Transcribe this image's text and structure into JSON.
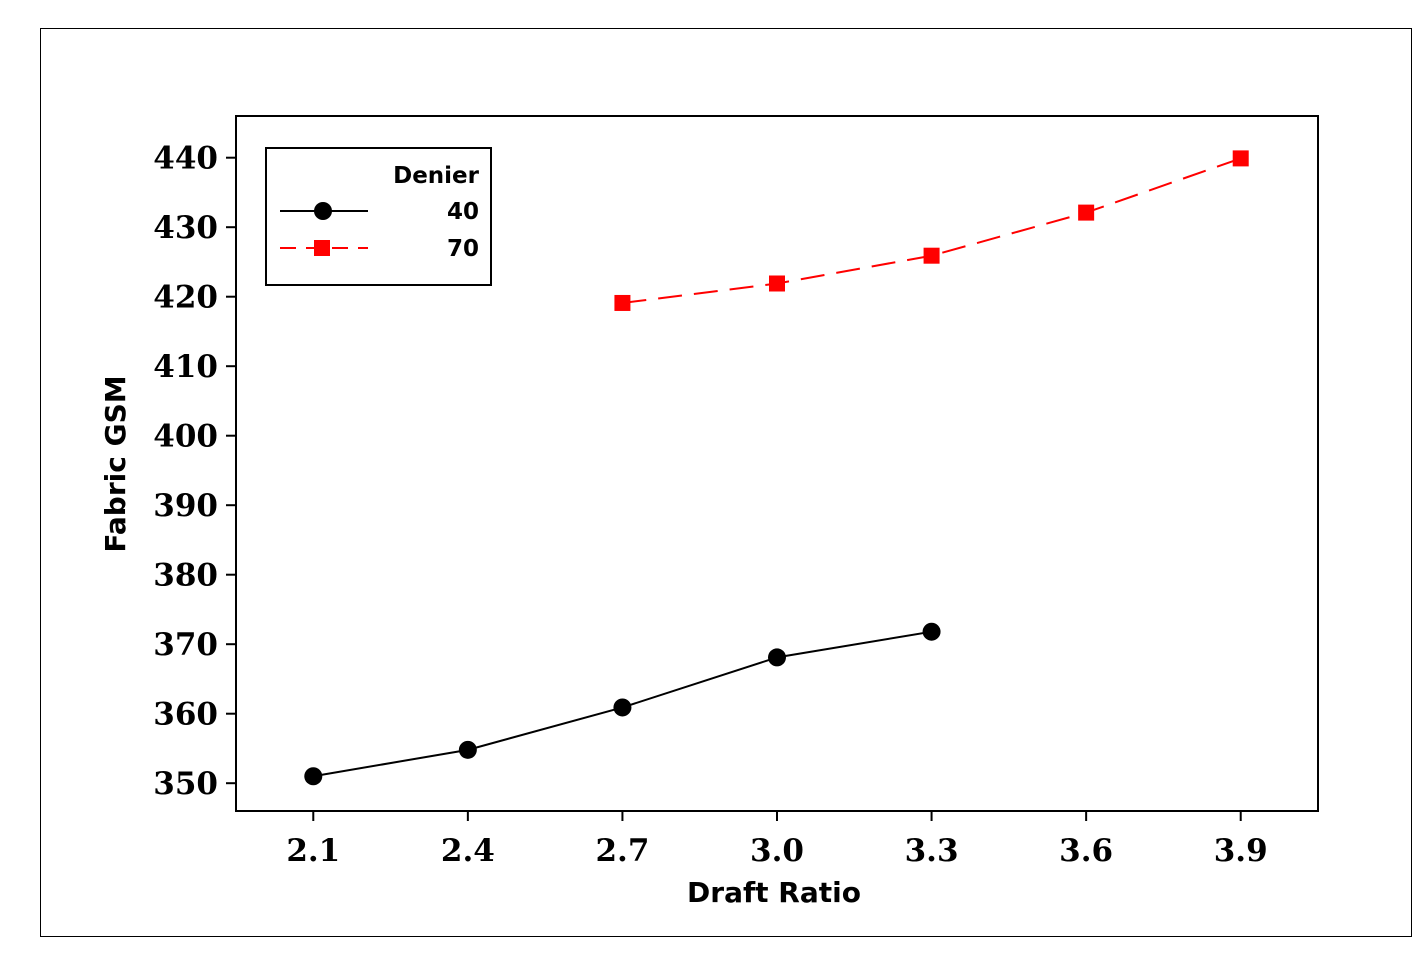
{
  "chart_data": {
    "type": "line",
    "xlabel": "Draft Ratio",
    "ylabel": "Fabric GSM",
    "x_ticks": [
      "2.1",
      "2.4",
      "2.7",
      "3.0",
      "3.3",
      "3.6",
      "3.9"
    ],
    "y_ticks": [
      "350",
      "360",
      "370",
      "380",
      "390",
      "400",
      "410",
      "420",
      "430",
      "440"
    ],
    "xlim": [
      1.95,
      4.05
    ],
    "ylim": [
      346,
      446
    ],
    "grid": false,
    "legend": {
      "title": "Denier",
      "placement": "top-left",
      "entries": [
        "40",
        "70"
      ]
    },
    "series": [
      {
        "name": "40",
        "color": "#000000",
        "marker": "circle",
        "line_style": "solid",
        "x": [
          2.1,
          2.4,
          2.7,
          3.0,
          3.3
        ],
        "y": [
          351,
          354.8,
          360.9,
          368.1,
          371.8
        ]
      },
      {
        "name": "70",
        "color": "#ff0000",
        "marker": "square",
        "line_style": "dashed",
        "x": [
          2.7,
          3.0,
          3.3,
          3.6,
          3.9
        ],
        "y": [
          419.1,
          421.9,
          425.9,
          432.1,
          439.9
        ]
      }
    ]
  }
}
